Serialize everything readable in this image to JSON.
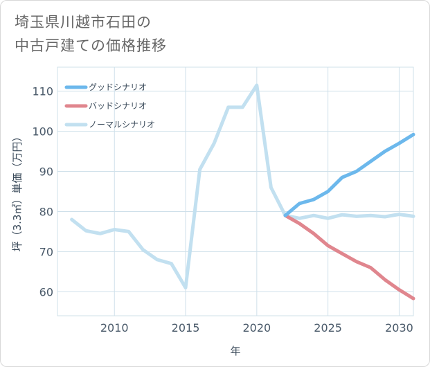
{
  "title": "埼玉県川越市石田の\n中古戸建ての価格推移",
  "chart_data": {
    "type": "line",
    "xlabel": "年",
    "ylabel": "坪（3.3㎡）単価（万円）",
    "xlim": [
      2006,
      2031
    ],
    "ylim": [
      54,
      116
    ],
    "x_ticks": [
      2010,
      2015,
      2020,
      2025,
      2030
    ],
    "y_ticks": [
      60,
      70,
      80,
      90,
      100,
      110
    ],
    "grid": true,
    "legend_position": "top-left",
    "series": [
      {
        "name": "グッドシナリオ",
        "color": "#6cb8ec",
        "x": [
          2022,
          2023,
          2024,
          2025,
          2026,
          2027,
          2028,
          2029,
          2030,
          2031
        ],
        "y": [
          79,
          82,
          83,
          85,
          88.5,
          90,
          92.5,
          95,
          97,
          99.2
        ]
      },
      {
        "name": "バッドシナリオ",
        "color": "#e0868e",
        "x": [
          2022,
          2023,
          2024,
          2025,
          2026,
          2027,
          2028,
          2029,
          2030,
          2031
        ],
        "y": [
          79,
          77,
          74.5,
          71.5,
          69.5,
          67.5,
          66,
          63,
          60.5,
          58.3
        ]
      },
      {
        "name": "ノーマルシナリオ",
        "color": "#c2e0f0",
        "x": [
          2007,
          2008,
          2009,
          2010,
          2011,
          2012,
          2013,
          2014,
          2015,
          2016,
          2017,
          2018,
          2019,
          2020,
          2021,
          2022,
          2023,
          2024,
          2025,
          2026,
          2027,
          2028,
          2029,
          2030,
          2031
        ],
        "y": [
          78,
          75.2,
          74.5,
          75.5,
          75,
          70.5,
          68,
          67,
          61,
          90.5,
          97,
          106,
          106,
          111.5,
          86,
          79,
          78.3,
          79,
          78.3,
          79.2,
          78.8,
          79,
          78.7,
          79.3,
          78.8
        ]
      }
    ]
  }
}
